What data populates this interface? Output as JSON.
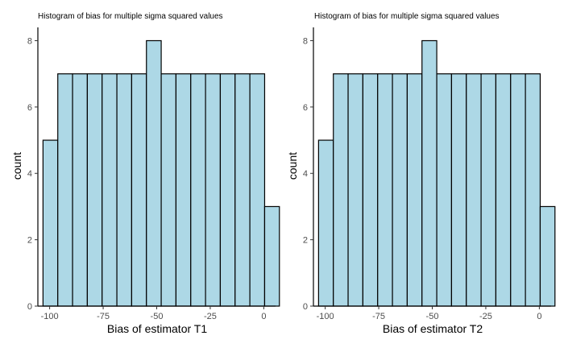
{
  "chart_data": [
    {
      "type": "bar",
      "title": "Histogram of bias for multiple sigma squared values",
      "xlabel": "Bias of estimator T1",
      "ylabel": "count",
      "xlim": [
        -105.5,
        5.5
      ],
      "ylim": [
        0,
        8.4
      ],
      "xticks": [
        -100,
        -75,
        -50,
        -25,
        0
      ],
      "xtick_labels": [
        "-100",
        "-75",
        "-50",
        "-25",
        "0"
      ],
      "yticks": [
        0,
        2,
        4,
        6,
        8
      ],
      "ytick_labels": [
        "0",
        "2",
        "4",
        "6",
        "8"
      ],
      "bin_width": 6.9,
      "bin_starts": [
        -103.1,
        -96.2,
        -89.3,
        -82.4,
        -75.5,
        -68.6,
        -61.7,
        -54.8,
        -47.9,
        -41.0,
        -34.1,
        -27.2,
        -20.3,
        -13.4,
        -6.5,
        0.4
      ],
      "counts": [
        5,
        7,
        7,
        7,
        7,
        7,
        7,
        8,
        7,
        7,
        7,
        7,
        7,
        7,
        7,
        3
      ],
      "fill_color": "#add8e6",
      "grid": false
    },
    {
      "type": "bar",
      "title": "Histogram of bias for multiple sigma squared values",
      "xlabel": "Bias of estimator T2",
      "ylabel": "count",
      "xlim": [
        -105.5,
        5.5
      ],
      "ylim": [
        0,
        8.4
      ],
      "xticks": [
        -100,
        -75,
        -50,
        -25,
        0
      ],
      "xtick_labels": [
        "-100",
        "-75",
        "-50",
        "-25",
        "0"
      ],
      "yticks": [
        0,
        2,
        4,
        6,
        8
      ],
      "ytick_labels": [
        "0",
        "2",
        "4",
        "6",
        "8"
      ],
      "bin_width": 6.9,
      "bin_starts": [
        -103.1,
        -96.2,
        -89.3,
        -82.4,
        -75.5,
        -68.6,
        -61.7,
        -54.8,
        -47.9,
        -41.0,
        -34.1,
        -27.2,
        -20.3,
        -13.4,
        -6.5,
        0.4
      ],
      "counts": [
        5,
        7,
        7,
        7,
        7,
        7,
        7,
        8,
        7,
        7,
        7,
        7,
        7,
        7,
        7,
        3
      ],
      "fill_color": "#add8e6",
      "grid": false
    }
  ]
}
